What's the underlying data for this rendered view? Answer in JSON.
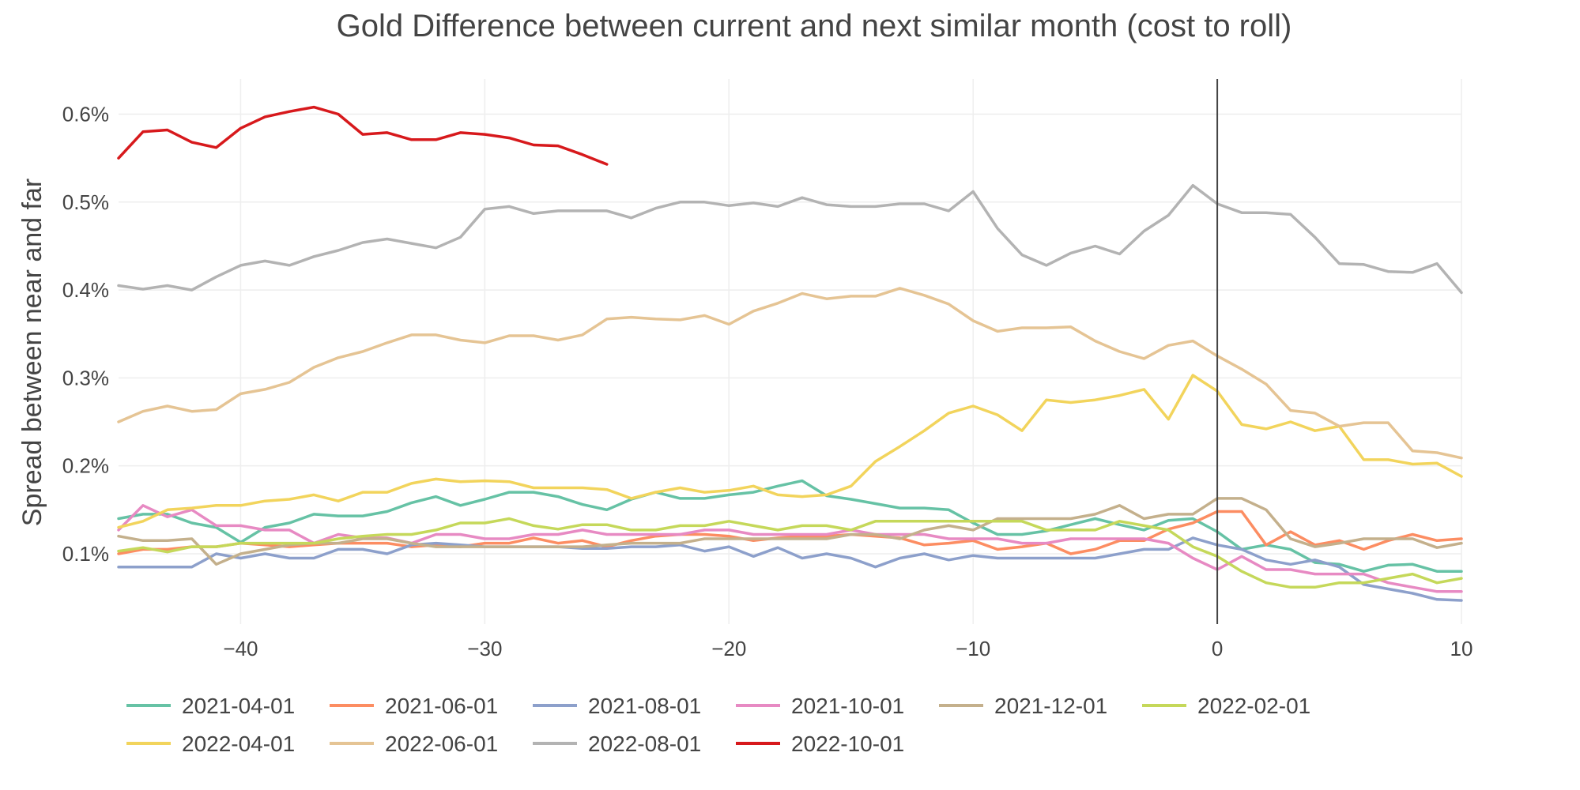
{
  "chart_data": {
    "type": "line",
    "title": "Gold Difference between current and next similar month (cost to roll)",
    "xlabel": "",
    "ylabel": "Spread between near and far",
    "xlim": [
      -45,
      10
    ],
    "ylim": [
      0.02,
      0.64
    ],
    "x_ticks": [
      -40,
      -30,
      -20,
      -10,
      0,
      10
    ],
    "x_tick_labels": [
      "−40",
      "−30",
      "−20",
      "−10",
      "0",
      "10"
    ],
    "y_ticks": [
      0.1,
      0.2,
      0.3,
      0.4,
      0.5,
      0.6
    ],
    "y_tick_labels": [
      "0.1%",
      "0.2%",
      "0.3%",
      "0.4%",
      "0.5%",
      "0.6%"
    ],
    "grid": true,
    "vertical_reference_line_x": 0,
    "legend_position": "bottom",
    "series": [
      {
        "name": "2021-04-01",
        "color": "#66c2a5",
        "x": [
          -45,
          -44,
          -43,
          -42,
          -41,
          -40,
          -39,
          -38,
          -37,
          -36,
          -35,
          -34,
          -33,
          -32,
          -31,
          -30,
          -29,
          -28,
          -27,
          -26,
          -25,
          -24,
          -23,
          -22,
          -21,
          -20,
          -19,
          -18,
          -17,
          -16,
          -15,
          -14,
          -13,
          -12,
          -11,
          -10,
          -9,
          -8,
          -7,
          -6,
          -5,
          -4,
          -3,
          -2,
          -1,
          0,
          1,
          2,
          3,
          4,
          5,
          6,
          7,
          8,
          9,
          10
        ],
        "y": [
          0.14,
          0.145,
          0.145,
          0.135,
          0.13,
          0.113,
          0.13,
          0.135,
          0.145,
          0.143,
          0.143,
          0.148,
          0.158,
          0.165,
          0.155,
          0.162,
          0.17,
          0.17,
          0.165,
          0.156,
          0.15,
          0.162,
          0.17,
          0.163,
          0.163,
          0.167,
          0.17,
          0.177,
          0.183,
          0.166,
          0.162,
          0.157,
          0.152,
          0.152,
          0.15,
          0.135,
          0.122,
          0.122,
          0.126,
          0.133,
          0.14,
          0.133,
          0.127,
          0.138,
          0.14,
          0.125,
          0.105,
          0.11,
          0.105,
          0.09,
          0.088,
          0.08,
          0.087,
          0.088,
          0.08,
          0.08
        ]
      },
      {
        "name": "2021-06-01",
        "color": "#fc8d62",
        "x": [
          -45,
          -44,
          -43,
          -42,
          -41,
          -40,
          -39,
          -38,
          -37,
          -36,
          -35,
          -34,
          -33,
          -32,
          -31,
          -30,
          -29,
          -28,
          -27,
          -26,
          -25,
          -24,
          -23,
          -22,
          -21,
          -20,
          -19,
          -18,
          -17,
          -16,
          -15,
          -14,
          -13,
          -12,
          -11,
          -10,
          -9,
          -8,
          -7,
          -6,
          -5,
          -4,
          -3,
          -2,
          -1,
          0,
          1,
          2,
          3,
          4,
          5,
          6,
          7,
          8,
          9,
          10
        ],
        "y": [
          0.1,
          0.105,
          0.105,
          0.108,
          0.108,
          0.112,
          0.11,
          0.108,
          0.11,
          0.112,
          0.112,
          0.112,
          0.108,
          0.11,
          0.108,
          0.112,
          0.112,
          0.118,
          0.112,
          0.115,
          0.108,
          0.115,
          0.12,
          0.122,
          0.122,
          0.12,
          0.115,
          0.118,
          0.12,
          0.12,
          0.122,
          0.12,
          0.118,
          0.11,
          0.112,
          0.115,
          0.105,
          0.108,
          0.112,
          0.1,
          0.105,
          0.115,
          0.115,
          0.128,
          0.135,
          0.148,
          0.148,
          0.11,
          0.125,
          0.11,
          0.115,
          0.105,
          0.115,
          0.122,
          0.115,
          0.117
        ]
      },
      {
        "name": "2021-08-01",
        "color": "#8da0cb",
        "x": [
          -45,
          -44,
          -43,
          -42,
          -41,
          -40,
          -39,
          -38,
          -37,
          -36,
          -35,
          -34,
          -33,
          -32,
          -31,
          -30,
          -29,
          -28,
          -27,
          -26,
          -25,
          -24,
          -23,
          -22,
          -21,
          -20,
          -19,
          -18,
          -17,
          -16,
          -15,
          -14,
          -13,
          -12,
          -11,
          -10,
          -9,
          -8,
          -7,
          -6,
          -5,
          -4,
          -3,
          -2,
          -1,
          0,
          1,
          2,
          3,
          4,
          5,
          6,
          7,
          8,
          9,
          10
        ],
        "y": [
          0.085,
          0.085,
          0.085,
          0.085,
          0.1,
          0.095,
          0.1,
          0.095,
          0.095,
          0.105,
          0.105,
          0.1,
          0.11,
          0.112,
          0.11,
          0.108,
          0.108,
          0.108,
          0.108,
          0.106,
          0.106,
          0.108,
          0.108,
          0.11,
          0.103,
          0.108,
          0.097,
          0.107,
          0.095,
          0.1,
          0.095,
          0.085,
          0.095,
          0.1,
          0.093,
          0.098,
          0.095,
          0.095,
          0.095,
          0.095,
          0.095,
          0.1,
          0.105,
          0.105,
          0.118,
          0.11,
          0.105,
          0.093,
          0.088,
          0.093,
          0.085,
          0.065,
          0.06,
          0.055,
          0.048,
          0.047
        ]
      },
      {
        "name": "2021-10-01",
        "color": "#e78ac3",
        "x": [
          -45,
          -44,
          -43,
          -42,
          -41,
          -40,
          -39,
          -38,
          -37,
          -36,
          -35,
          -34,
          -33,
          -32,
          -31,
          -30,
          -29,
          -28,
          -27,
          -26,
          -25,
          -24,
          -23,
          -22,
          -21,
          -20,
          -19,
          -18,
          -17,
          -16,
          -15,
          -14,
          -13,
          -12,
          -11,
          -10,
          -9,
          -8,
          -7,
          -6,
          -5,
          -4,
          -3,
          -2,
          -1,
          0,
          1,
          2,
          3,
          4,
          5,
          6,
          7,
          8,
          9,
          10
        ],
        "y": [
          0.127,
          0.155,
          0.142,
          0.15,
          0.132,
          0.132,
          0.127,
          0.127,
          0.112,
          0.122,
          0.118,
          0.118,
          0.112,
          0.122,
          0.122,
          0.117,
          0.117,
          0.122,
          0.122,
          0.127,
          0.122,
          0.122,
          0.122,
          0.122,
          0.127,
          0.127,
          0.122,
          0.122,
          0.122,
          0.122,
          0.127,
          0.122,
          0.122,
          0.122,
          0.117,
          0.117,
          0.117,
          0.112,
          0.112,
          0.117,
          0.117,
          0.117,
          0.117,
          0.112,
          0.095,
          0.082,
          0.097,
          0.082,
          0.082,
          0.077,
          0.077,
          0.077,
          0.067,
          0.062,
          0.057,
          0.057
        ]
      },
      {
        "name": "2021-12-01",
        "color": "#c4b08c",
        "x": [
          -45,
          -44,
          -43,
          -42,
          -41,
          -40,
          -39,
          -38,
          -37,
          -36,
          -35,
          -34,
          -33,
          -32,
          -31,
          -30,
          -29,
          -28,
          -27,
          -26,
          -25,
          -24,
          -23,
          -22,
          -21,
          -20,
          -19,
          -18,
          -17,
          -16,
          -15,
          -14,
          -13,
          -12,
          -11,
          -10,
          -9,
          -8,
          -7,
          -6,
          -5,
          -4,
          -3,
          -2,
          -1,
          0,
          1,
          2,
          3,
          4,
          5,
          6,
          7,
          8,
          9,
          10
        ],
        "y": [
          0.12,
          0.115,
          0.115,
          0.117,
          0.088,
          0.1,
          0.105,
          0.11,
          0.112,
          0.112,
          0.117,
          0.117,
          0.112,
          0.108,
          0.108,
          0.108,
          0.108,
          0.108,
          0.108,
          0.108,
          0.11,
          0.112,
          0.112,
          0.112,
          0.117,
          0.117,
          0.117,
          0.117,
          0.117,
          0.117,
          0.122,
          0.122,
          0.117,
          0.127,
          0.132,
          0.127,
          0.14,
          0.14,
          0.14,
          0.14,
          0.145,
          0.155,
          0.14,
          0.145,
          0.145,
          0.163,
          0.163,
          0.15,
          0.117,
          0.108,
          0.112,
          0.117,
          0.117,
          0.117,
          0.107,
          0.112
        ]
      },
      {
        "name": "2022-02-01",
        "color": "#c5d85a",
        "x": [
          -45,
          -44,
          -43,
          -42,
          -41,
          -40,
          -39,
          -38,
          -37,
          -36,
          -35,
          -34,
          -33,
          -32,
          -31,
          -30,
          -29,
          -28,
          -27,
          -26,
          -25,
          -24,
          -23,
          -22,
          -21,
          -20,
          -19,
          -18,
          -17,
          -16,
          -15,
          -14,
          -13,
          -12,
          -11,
          -10,
          -9,
          -8,
          -7,
          -6,
          -5,
          -4,
          -3,
          -2,
          -1,
          0,
          1,
          2,
          3,
          4,
          5,
          6,
          7,
          8,
          9,
          10
        ],
        "y": [
          0.103,
          0.107,
          0.102,
          0.108,
          0.108,
          0.112,
          0.112,
          0.112,
          0.112,
          0.117,
          0.12,
          0.122,
          0.122,
          0.127,
          0.135,
          0.135,
          0.14,
          0.132,
          0.128,
          0.133,
          0.133,
          0.127,
          0.127,
          0.132,
          0.132,
          0.137,
          0.132,
          0.127,
          0.132,
          0.132,
          0.127,
          0.137,
          0.137,
          0.137,
          0.137,
          0.137,
          0.137,
          0.137,
          0.127,
          0.127,
          0.127,
          0.137,
          0.132,
          0.127,
          0.108,
          0.097,
          0.08,
          0.067,
          0.062,
          0.062,
          0.067,
          0.067,
          0.072,
          0.077,
          0.067,
          0.072
        ]
      },
      {
        "name": "2022-04-01",
        "color": "#f2d45c",
        "x": [
          -45,
          -44,
          -43,
          -42,
          -41,
          -40,
          -39,
          -38,
          -37,
          -36,
          -35,
          -34,
          -33,
          -32,
          -31,
          -30,
          -29,
          -28,
          -27,
          -26,
          -25,
          -24,
          -23,
          -22,
          -21,
          -20,
          -19,
          -18,
          -17,
          -16,
          -15,
          -14,
          -13,
          -12,
          -11,
          -10,
          -9,
          -8,
          -7,
          -6,
          -5,
          -4,
          -3,
          -2,
          -1,
          0,
          1,
          2,
          3,
          4,
          5,
          6,
          7,
          8,
          9,
          10
        ],
        "y": [
          0.13,
          0.137,
          0.15,
          0.152,
          0.155,
          0.155,
          0.16,
          0.162,
          0.167,
          0.16,
          0.17,
          0.17,
          0.18,
          0.185,
          0.182,
          0.183,
          0.182,
          0.175,
          0.175,
          0.175,
          0.173,
          0.163,
          0.17,
          0.175,
          0.17,
          0.172,
          0.177,
          0.167,
          0.165,
          0.167,
          0.177,
          0.205,
          0.222,
          0.24,
          0.26,
          0.268,
          0.258,
          0.24,
          0.275,
          0.272,
          0.275,
          0.28,
          0.287,
          0.253,
          0.303,
          0.285,
          0.247,
          0.242,
          0.25,
          0.24,
          0.245,
          0.207,
          0.207,
          0.202,
          0.203,
          0.188
        ]
      },
      {
        "name": "2022-06-01",
        "color": "#e5c494",
        "x": [
          -45,
          -44,
          -43,
          -42,
          -41,
          -40,
          -39,
          -38,
          -37,
          -36,
          -35,
          -34,
          -33,
          -32,
          -31,
          -30,
          -29,
          -28,
          -27,
          -26,
          -25,
          -24,
          -23,
          -22,
          -21,
          -20,
          -19,
          -18,
          -17,
          -16,
          -15,
          -14,
          -13,
          -12,
          -11,
          -10,
          -9,
          -8,
          -7,
          -6,
          -5,
          -4,
          -3,
          -2,
          -1,
          0,
          1,
          2,
          3,
          4,
          5,
          6,
          7,
          8,
          9,
          10
        ],
        "y": [
          0.25,
          0.262,
          0.268,
          0.262,
          0.264,
          0.282,
          0.287,
          0.295,
          0.312,
          0.323,
          0.33,
          0.34,
          0.349,
          0.349,
          0.343,
          0.34,
          0.348,
          0.348,
          0.343,
          0.349,
          0.367,
          0.369,
          0.367,
          0.366,
          0.371,
          0.361,
          0.376,
          0.385,
          0.396,
          0.39,
          0.393,
          0.393,
          0.402,
          0.394,
          0.384,
          0.365,
          0.353,
          0.357,
          0.357,
          0.358,
          0.342,
          0.33,
          0.322,
          0.337,
          0.342,
          0.325,
          0.31,
          0.293,
          0.263,
          0.26,
          0.245,
          0.249,
          0.249,
          0.217,
          0.215,
          0.209
        ]
      },
      {
        "name": "2022-08-01",
        "color": "#b3b3b3",
        "x": [
          -45,
          -44,
          -43,
          -42,
          -41,
          -40,
          -39,
          -38,
          -37,
          -36,
          -35,
          -34,
          -33,
          -32,
          -31,
          -30,
          -29,
          -28,
          -27,
          -26,
          -25,
          -24,
          -23,
          -22,
          -21,
          -20,
          -19,
          -18,
          -17,
          -16,
          -15,
          -14,
          -13,
          -12,
          -11,
          -10,
          -9,
          -8,
          -7,
          -6,
          -5,
          -4,
          -3,
          -2,
          -1,
          0,
          1,
          2,
          3,
          4,
          5,
          6,
          7,
          8,
          9,
          10
        ],
        "y": [
          0.405,
          0.401,
          0.405,
          0.4,
          0.415,
          0.428,
          0.433,
          0.428,
          0.438,
          0.445,
          0.454,
          0.458,
          0.453,
          0.448,
          0.46,
          0.492,
          0.495,
          0.487,
          0.49,
          0.49,
          0.49,
          0.482,
          0.493,
          0.5,
          0.5,
          0.496,
          0.499,
          0.495,
          0.505,
          0.497,
          0.495,
          0.495,
          0.498,
          0.498,
          0.49,
          0.512,
          0.47,
          0.44,
          0.428,
          0.442,
          0.45,
          0.441,
          0.467,
          0.485,
          0.519,
          0.498,
          0.488,
          0.488,
          0.486,
          0.46,
          0.43,
          0.429,
          0.421,
          0.42,
          0.43,
          0.397
        ]
      },
      {
        "name": "2022-10-01",
        "color": "#d7191c",
        "x": [
          -45,
          -44,
          -43,
          -42,
          -41,
          -40,
          -39,
          -38,
          -37,
          -36,
          -35,
          -34,
          -33,
          -32,
          -31,
          -30,
          -29,
          -28,
          -27,
          -26,
          -25
        ],
        "y": [
          0.55,
          0.58,
          0.582,
          0.568,
          0.562,
          0.584,
          0.597,
          0.603,
          0.608,
          0.6,
          0.577,
          0.579,
          0.571,
          0.571,
          0.579,
          0.577,
          0.573,
          0.565,
          0.564,
          0.554,
          0.543
        ]
      }
    ]
  }
}
